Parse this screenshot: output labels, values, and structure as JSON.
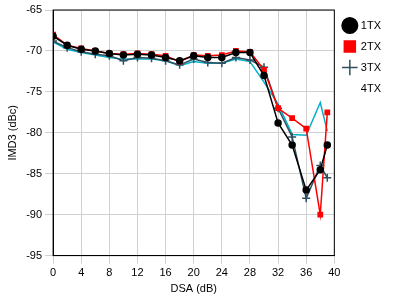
{
  "chart_data": {
    "type": "line",
    "x_label": "DSA (dB)",
    "y_label": "IMD3 (dBc)",
    "x": [
      0,
      2,
      4,
      6,
      8,
      10,
      12,
      14,
      16,
      18,
      20,
      22,
      24,
      26,
      28,
      30,
      32,
      34,
      36,
      38,
      39
    ],
    "series": [
      {
        "name": "1TX",
        "color": "#000000",
        "marker": "circle",
        "values": [
          -68.2,
          -69.3,
          -69.8,
          -70.0,
          -70.3,
          -70.5,
          -70.4,
          -70.5,
          -70.8,
          -71.2,
          -70.6,
          -70.8,
          -70.8,
          -70.2,
          -70.2,
          -73.0,
          -78.8,
          -81.5,
          -87.0,
          -84.5,
          -81.5
        ]
      },
      {
        "name": "2TX",
        "color": "#ff0000",
        "marker": "square",
        "values": [
          -68.0,
          -69.3,
          -69.7,
          -70.0,
          -70.3,
          -70.4,
          -70.3,
          -70.4,
          -70.6,
          -71.3,
          -70.5,
          -70.6,
          -70.5,
          -70.0,
          -70.1,
          -72.3,
          -77.0,
          -78.2,
          -79.5,
          -90.0,
          -77.5
        ]
      },
      {
        "name": "3TX",
        "color": "#2f4f5f",
        "marker": "plus",
        "values": [
          -68.8,
          -69.6,
          -70.1,
          -70.4,
          -70.6,
          -71.2,
          -70.8,
          -70.9,
          -71.2,
          -71.7,
          -71.0,
          -71.4,
          -71.5,
          -70.8,
          -71.1,
          -72.0,
          -77.0,
          -80.5,
          -88.0,
          -84.0,
          -85.5
        ]
      },
      {
        "name": "4TX",
        "color": "#00b0c8",
        "marker": "none",
        "values": [
          -68.9,
          -69.8,
          -70.2,
          -70.5,
          -70.8,
          -71.0,
          -71.0,
          -71.0,
          -71.2,
          -71.8,
          -71.3,
          -71.5,
          -71.5,
          -71.0,
          -71.3,
          -73.8,
          -76.5,
          -80.2,
          -80.3,
          -76.3,
          -79.8
        ]
      }
    ],
    "xlim": [
      0,
      40
    ],
    "xticks": [
      0,
      4,
      8,
      12,
      16,
      20,
      24,
      28,
      32,
      36,
      40
    ],
    "ylim": [
      -95,
      -65
    ],
    "yticks": [
      -95,
      -90,
      -85,
      -80,
      -75,
      -70,
      -65
    ],
    "grid": true,
    "legend": "right"
  }
}
